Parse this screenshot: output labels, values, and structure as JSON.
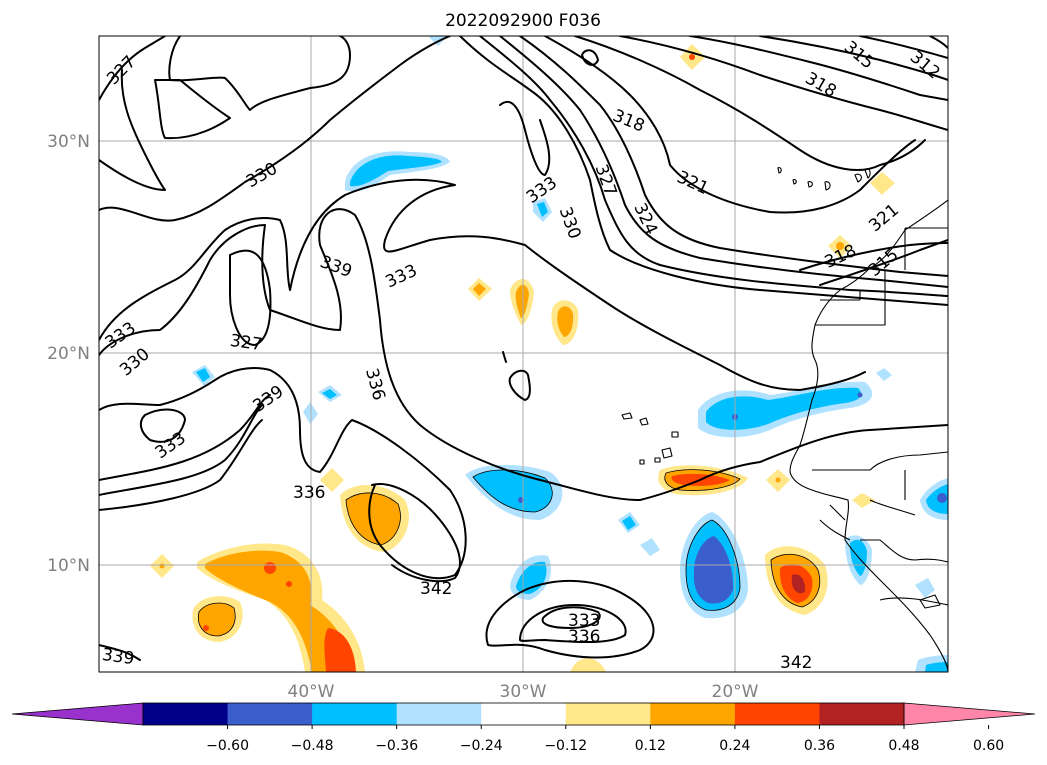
{
  "title": "2022092900 F036",
  "map": {
    "lat_labels": [
      "30°N",
      "20°N",
      "10°N"
    ],
    "lon_labels": [
      "40°W",
      "30°W",
      "20°W"
    ],
    "gridlines": true,
    "contour_labels": [
      "327",
      "330",
      "333",
      "330",
      "327",
      "339",
      "333",
      "336",
      "339",
      "333",
      "336",
      "342",
      "333",
      "336",
      "339",
      "333",
      "330",
      "327",
      "324",
      "321",
      "318",
      "318",
      "315",
      "312",
      "321",
      "318",
      "315",
      "342"
    ]
  },
  "colorbar": {
    "tick_labels": [
      "−0.60",
      "−0.48",
      "−0.36",
      "−0.24",
      "−0.12",
      "0.12",
      "0.24",
      "0.36",
      "0.48",
      "0.60"
    ],
    "colors": [
      "#9932cc",
      "#00008b",
      "#3a5fcd",
      "#00bfff",
      "#b0e2ff",
      "#ffffff",
      "#ffe78a",
      "#ffa500",
      "#ff4500",
      "#b22222",
      "#ff85a9"
    ],
    "extend": "both"
  }
}
